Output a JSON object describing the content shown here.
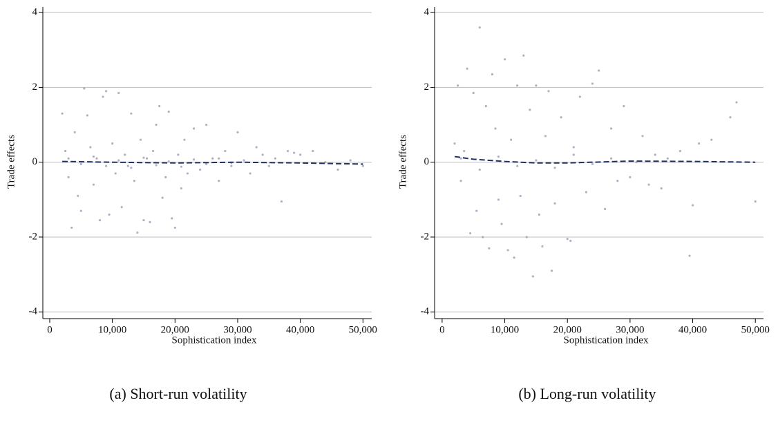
{
  "chart_data": [
    {
      "type": "scatter",
      "xlabel": "Sophistication index",
      "ylabel": "Trade effects",
      "caption": "(a) Short-run volatility",
      "xlim": [
        -1100,
        51400
      ],
      "ylim": [
        -4.18,
        4.15
      ],
      "xticks": [
        0,
        {
          "value": 10000,
          "label": "10,000"
        },
        {
          "value": 20000,
          "label": "20,000"
        },
        {
          "value": 30000,
          "label": "30,000"
        },
        {
          "value": 40000,
          "label": "40,000"
        },
        {
          "value": 50000,
          "label": "50,000"
        }
      ],
      "yticks": [
        -4,
        -2,
        0,
        2,
        4
      ],
      "grid": true,
      "points": {
        "color": "#9d9cb8",
        "x": [
          2000,
          2500,
          3000,
          3500,
          4000,
          4500,
          5000,
          5500,
          6000,
          6500,
          7000,
          7500,
          8000,
          8500,
          9000,
          9500,
          10000,
          10500,
          11000,
          11500,
          12000,
          12500,
          13000,
          13500,
          14000,
          14500,
          15000,
          15500,
          16000,
          16500,
          17000,
          17500,
          18000,
          18500,
          19000,
          19500,
          20000,
          20500,
          21000,
          21500,
          22000,
          23000,
          24000,
          25000,
          26000,
          27000,
          28000,
          29000,
          30000,
          31000,
          32000,
          33000,
          34000,
          35000,
          36000,
          37000,
          38000,
          39000,
          40000,
          42000,
          44000,
          46000,
          48000,
          50000,
          3000,
          5000,
          7000,
          9000,
          11000,
          13000,
          15000,
          17000,
          19000,
          21000,
          23000,
          25000,
          27000,
          29000
        ],
        "y": [
          1.3,
          0.3,
          -0.4,
          -1.75,
          0.8,
          -0.9,
          -1.3,
          1.97,
          1.25,
          0.4,
          -0.6,
          0.1,
          -1.55,
          1.75,
          1.9,
          -1.4,
          0.5,
          -0.3,
          1.85,
          -1.2,
          0.2,
          -0.1,
          1.3,
          -0.5,
          -1.88,
          0.6,
          -1.55,
          0.1,
          -1.6,
          0.3,
          1.0,
          1.5,
          -0.95,
          -0.4,
          1.35,
          -1.5,
          -1.75,
          0.2,
          -0.7,
          0.6,
          -0.3,
          0.9,
          -0.2,
          1.0,
          0.1,
          -0.5,
          0.3,
          -0.1,
          0.8,
          0.05,
          -0.3,
          0.4,
          0.2,
          -0.1,
          0.1,
          -1.05,
          0.3,
          0.25,
          0.2,
          0.3,
          0.0,
          -0.2,
          0.05,
          -0.1,
          0.1,
          -0.05,
          0.15,
          -0.1,
          0.05,
          -0.15,
          0.12,
          -0.08,
          0.02,
          -0.12,
          0.07,
          -0.05,
          0.1,
          -0.02
        ]
      },
      "fit": {
        "color": "#1f3060",
        "x": [
          2000,
          10000,
          20000,
          30000,
          40000,
          50000
        ],
        "y": [
          0.02,
          0.0,
          -0.02,
          0.0,
          -0.02,
          -0.05
        ]
      }
    },
    {
      "type": "scatter",
      "xlabel": "Sophistication index",
      "ylabel": "Trade effects",
      "caption": "(b) Long-run volatility",
      "xlim": [
        -1200,
        51300
      ],
      "ylim": [
        -4.18,
        4.15
      ],
      "xticks": [
        0,
        {
          "value": 10000,
          "label": "10,000"
        },
        {
          "value": 20000,
          "label": "20,000"
        },
        {
          "value": 30000,
          "label": "30,000"
        },
        {
          "value": 40000,
          "label": "40,000"
        },
        {
          "value": 50000,
          "label": "50,000"
        }
      ],
      "yticks": [
        -4,
        -2,
        0,
        2,
        4
      ],
      "grid": true,
      "points": {
        "color": "#9d9cb8",
        "x": [
          2000,
          2500,
          3000,
          3500,
          4000,
          4500,
          5000,
          5500,
          6000,
          6500,
          7000,
          7500,
          8000,
          8500,
          9000,
          9500,
          10000,
          10500,
          11000,
          11500,
          12000,
          12500,
          13000,
          13500,
          14000,
          14500,
          15000,
          15500,
          16000,
          16500,
          17000,
          17500,
          18000,
          19000,
          20000,
          20500,
          21000,
          22000,
          23000,
          24000,
          25000,
          26000,
          27000,
          28000,
          29000,
          30000,
          32000,
          33000,
          34000,
          35000,
          36000,
          38000,
          39500,
          40000,
          41000,
          43000,
          46000,
          47000,
          50000,
          3000,
          6000,
          9000,
          12000,
          15000,
          18000,
          21000,
          24000,
          27000,
          31000
        ],
        "y": [
          0.5,
          2.05,
          -0.5,
          0.3,
          2.5,
          -1.9,
          1.85,
          -1.3,
          3.6,
          -2.0,
          1.5,
          -2.3,
          2.35,
          0.9,
          -1.0,
          -1.65,
          2.75,
          -2.35,
          0.6,
          -2.55,
          2.05,
          -0.9,
          2.85,
          -2.0,
          1.4,
          -3.05,
          2.05,
          -1.4,
          -2.25,
          0.7,
          1.9,
          -2.9,
          -1.1,
          1.2,
          -2.05,
          -2.1,
          0.4,
          1.75,
          -0.8,
          2.1,
          2.45,
          -1.25,
          0.9,
          -0.5,
          1.5,
          -0.4,
          0.7,
          -0.6,
          0.2,
          -0.7,
          0.1,
          0.3,
          -2.5,
          -1.15,
          0.5,
          0.6,
          1.2,
          1.6,
          -1.05,
          0.1,
          -0.2,
          0.15,
          -0.1,
          0.05,
          -0.15,
          0.2,
          -0.05,
          0.1,
          0.0
        ]
      },
      "fit": {
        "color": "#1f3060",
        "x": [
          2000,
          5000,
          10000,
          15000,
          20000,
          30000,
          40000,
          50000
        ],
        "y": [
          0.15,
          0.08,
          0.02,
          -0.02,
          -0.02,
          0.03,
          0.02,
          0.0
        ]
      }
    }
  ]
}
